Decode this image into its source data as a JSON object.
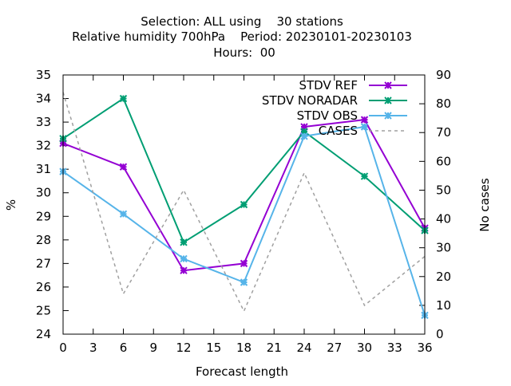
{
  "title_lines": [
    "Selection: ALL using    30 stations",
    "Relative humidity 700hPa    Period: 20230101-20230103",
    "Hours:  00"
  ],
  "chart_data": {
    "type": "line",
    "xlabel": "Forecast length",
    "ylabel": "%",
    "y2label": "No cases",
    "xlim": [
      0,
      36
    ],
    "ylim": [
      24,
      35
    ],
    "y2lim": [
      0,
      90
    ],
    "xticks": [
      0,
      3,
      6,
      9,
      12,
      15,
      18,
      21,
      24,
      27,
      30,
      33,
      36
    ],
    "yticks": [
      24,
      25,
      26,
      27,
      28,
      29,
      30,
      31,
      32,
      33,
      34,
      35
    ],
    "y2ticks": [
      0,
      10,
      20,
      30,
      40,
      50,
      60,
      70,
      80,
      90
    ],
    "legend_position": "top-right",
    "series": [
      {
        "name": "STDV REF",
        "color": "#9400d3",
        "axis": "y",
        "style": "solid",
        "marker": "x",
        "x": [
          0,
          6,
          12,
          18,
          24,
          30,
          36
        ],
        "y": [
          32.1,
          31.1,
          26.7,
          27.0,
          32.8,
          33.1,
          28.5
        ]
      },
      {
        "name": "STDV NORADAR",
        "color": "#009e73",
        "axis": "y",
        "style": "solid",
        "marker": "x",
        "x": [
          0,
          6,
          12,
          18,
          24,
          30,
          36
        ],
        "y": [
          32.3,
          34.0,
          27.9,
          29.5,
          32.6,
          30.7,
          28.4
        ]
      },
      {
        "name": "STDV OBS",
        "color": "#56b4e9",
        "axis": "y",
        "style": "solid",
        "marker": "x",
        "x": [
          0,
          6,
          12,
          18,
          24,
          30,
          36
        ],
        "y": [
          30.9,
          29.1,
          27.2,
          26.2,
          32.4,
          32.8,
          24.8
        ]
      },
      {
        "name": "CASES",
        "color": "#a0a0a0",
        "axis": "y2",
        "style": "dashed",
        "marker": "none",
        "x": [
          0,
          6,
          12,
          18,
          24,
          30,
          36
        ],
        "y": [
          84,
          14,
          50,
          8,
          56,
          10,
          27
        ]
      }
    ]
  }
}
